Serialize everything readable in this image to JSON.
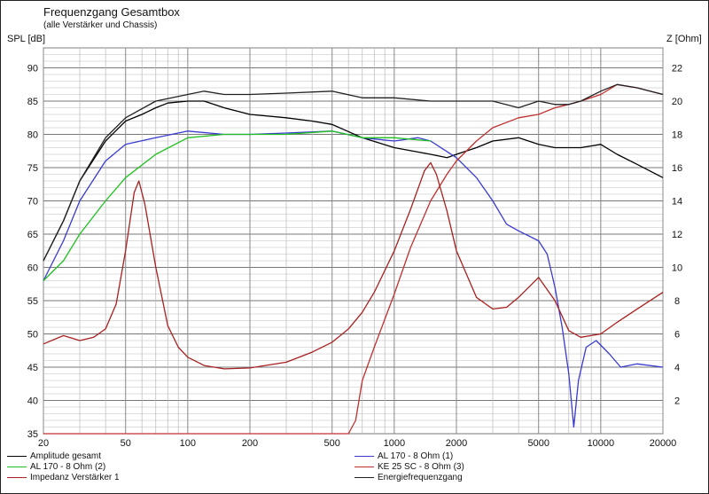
{
  "title": "Frequenzgang Gesamtbox",
  "subtitle": "(alle Verstärker und Chassis)",
  "chart_data": {
    "type": "line",
    "title": "Frequenzgang Gesamtbox",
    "subtitle": "(alle Verstärker und Chassis)",
    "xlabel": "",
    "ylabel": "SPL [dB]",
    "y2label": "Z [Ohm]",
    "xscale": "log",
    "xlim": [
      20,
      20000
    ],
    "ylim": [
      35,
      93
    ],
    "y2lim": [
      0,
      23.2
    ],
    "xticks": [
      20,
      50,
      100,
      200,
      500,
      1000,
      2000,
      5000,
      10000,
      20000
    ],
    "xtick_labels": [
      "20",
      "50",
      "100",
      "200",
      "500",
      "1000",
      "2000",
      "5000",
      "10000",
      "20000"
    ],
    "yticks": [
      35,
      40,
      45,
      50,
      55,
      60,
      65,
      70,
      75,
      80,
      85,
      90
    ],
    "ytick_labels": [
      "35",
      "40",
      "45",
      "50",
      "55",
      "60",
      "65",
      "70",
      "75",
      "80",
      "85",
      "90"
    ],
    "y2ticks": [
      2,
      4,
      6,
      8,
      10,
      12,
      14,
      16,
      18,
      20,
      22
    ],
    "y2tick_labels": [
      "2",
      "4",
      "6",
      "8",
      "10",
      "12",
      "14",
      "16",
      "18",
      "20",
      "22"
    ],
    "grid": true,
    "legend_position": "bottom",
    "series": [
      {
        "name": "Amplitude gesamt",
        "color": "#000000",
        "axis": "left",
        "points": [
          [
            20,
            61
          ],
          [
            25,
            67
          ],
          [
            30,
            73
          ],
          [
            40,
            79
          ],
          [
            50,
            82
          ],
          [
            60,
            83
          ],
          [
            70,
            84
          ],
          [
            80,
            84.7
          ],
          [
            100,
            85
          ],
          [
            120,
            85
          ],
          [
            150,
            84
          ],
          [
            200,
            83
          ],
          [
            300,
            82.5
          ],
          [
            400,
            82
          ],
          [
            500,
            81.5
          ],
          [
            700,
            79.5
          ],
          [
            1000,
            78
          ],
          [
            1500,
            77
          ],
          [
            1800,
            76.5
          ],
          [
            2000,
            77
          ],
          [
            2500,
            78
          ],
          [
            3000,
            79
          ],
          [
            4000,
            79.5
          ],
          [
            5000,
            78.5
          ],
          [
            6000,
            78
          ],
          [
            7000,
            78
          ],
          [
            8000,
            78
          ],
          [
            10000,
            78.5
          ],
          [
            12000,
            77
          ],
          [
            15000,
            75.5
          ],
          [
            20000,
            73.5
          ]
        ]
      },
      {
        "name": "AL 170 - 8 Ohm (1)",
        "color": "#3a3ad0",
        "axis": "left",
        "points": [
          [
            20,
            58
          ],
          [
            25,
            64
          ],
          [
            30,
            70
          ],
          [
            40,
            76
          ],
          [
            50,
            78.5
          ],
          [
            70,
            79.5
          ],
          [
            100,
            80.5
          ],
          [
            150,
            80
          ],
          [
            200,
            80
          ],
          [
            300,
            80.2
          ],
          [
            500,
            80.5
          ],
          [
            700,
            79.5
          ],
          [
            1000,
            79
          ],
          [
            1300,
            79.5
          ],
          [
            1500,
            79
          ],
          [
            2000,
            76.5
          ],
          [
            2500,
            73.5
          ],
          [
            3000,
            70
          ],
          [
            3500,
            66.5
          ],
          [
            4000,
            65.5
          ],
          [
            5000,
            64
          ],
          [
            5500,
            62
          ],
          [
            6000,
            57
          ],
          [
            6500,
            51
          ],
          [
            7000,
            44
          ],
          [
            7400,
            36
          ],
          [
            7800,
            43
          ],
          [
            8500,
            48
          ],
          [
            9500,
            49
          ],
          [
            11000,
            47
          ],
          [
            12500,
            45
          ],
          [
            15000,
            45.5
          ],
          [
            20000,
            45
          ]
        ]
      },
      {
        "name": "AL 170 - 8 Ohm (2)",
        "color": "#20c020",
        "axis": "left",
        "points": [
          [
            20,
            58
          ],
          [
            25,
            61
          ],
          [
            30,
            65
          ],
          [
            40,
            70
          ],
          [
            50,
            73.5
          ],
          [
            70,
            77
          ],
          [
            100,
            79.5
          ],
          [
            150,
            80
          ],
          [
            200,
            80
          ],
          [
            300,
            80
          ],
          [
            500,
            80.5
          ],
          [
            700,
            79.5
          ],
          [
            1000,
            79.5
          ],
          [
            1500,
            79
          ]
        ]
      },
      {
        "name": "KE 25 SC - 8 Ohm   (3)",
        "color": "#c03030",
        "axis": "left",
        "points": [
          [
            20,
            35
          ],
          [
            600,
            35
          ],
          [
            650,
            37
          ],
          [
            700,
            43
          ],
          [
            800,
            48
          ],
          [
            1000,
            56
          ],
          [
            1200,
            63
          ],
          [
            1500,
            70
          ],
          [
            1800,
            74
          ],
          [
            2000,
            76
          ],
          [
            2500,
            79
          ],
          [
            3000,
            81
          ],
          [
            4000,
            82.5
          ],
          [
            5000,
            83
          ],
          [
            6000,
            84
          ],
          [
            7000,
            84.5
          ],
          [
            8000,
            85
          ],
          [
            10000,
            86
          ],
          [
            12000,
            87.5
          ],
          [
            15000,
            87
          ],
          [
            20000,
            86
          ]
        ]
      },
      {
        "name": "Impedanz Verstärker 1",
        "color": "#a82020",
        "axis": "right",
        "points": [
          [
            20,
            5.4
          ],
          [
            25,
            5.9
          ],
          [
            30,
            5.6
          ],
          [
            35,
            5.8
          ],
          [
            40,
            6.3
          ],
          [
            45,
            7.8
          ],
          [
            50,
            11
          ],
          [
            55,
            14.5
          ],
          [
            58,
            15.2
          ],
          [
            62,
            13.8
          ],
          [
            70,
            10
          ],
          [
            80,
            6.5
          ],
          [
            90,
            5.2
          ],
          [
            100,
            4.6
          ],
          [
            120,
            4.1
          ],
          [
            150,
            3.9
          ],
          [
            200,
            3.95
          ],
          [
            300,
            4.3
          ],
          [
            400,
            4.9
          ],
          [
            500,
            5.5
          ],
          [
            600,
            6.3
          ],
          [
            700,
            7.3
          ],
          [
            800,
            8.5
          ],
          [
            1000,
            11
          ],
          [
            1200,
            13.5
          ],
          [
            1400,
            15.8
          ],
          [
            1500,
            16.3
          ],
          [
            1600,
            15.6
          ],
          [
            1800,
            13.4
          ],
          [
            2000,
            11
          ],
          [
            2500,
            8.2
          ],
          [
            3000,
            7.5
          ],
          [
            3500,
            7.6
          ],
          [
            4000,
            8.2
          ],
          [
            5000,
            9.4
          ],
          [
            6000,
            8
          ],
          [
            7000,
            6.2
          ],
          [
            8000,
            5.8
          ],
          [
            10000,
            6
          ],
          [
            12000,
            6.7
          ],
          [
            15000,
            7.5
          ],
          [
            20000,
            8.5
          ]
        ]
      },
      {
        "name": "Energiefrequenzgang",
        "color": "#222222",
        "axis": "left",
        "points": [
          [
            20,
            61
          ],
          [
            25,
            67
          ],
          [
            30,
            73
          ],
          [
            40,
            79.5
          ],
          [
            50,
            82.5
          ],
          [
            70,
            85
          ],
          [
            100,
            86
          ],
          [
            120,
            86.5
          ],
          [
            150,
            86
          ],
          [
            200,
            86
          ],
          [
            300,
            86.2
          ],
          [
            500,
            86.5
          ],
          [
            700,
            85.5
          ],
          [
            1000,
            85.5
          ],
          [
            1500,
            85
          ],
          [
            2000,
            85
          ],
          [
            3000,
            85
          ],
          [
            4000,
            84
          ],
          [
            5000,
            85
          ],
          [
            6000,
            84.5
          ],
          [
            7000,
            84.5
          ],
          [
            8000,
            85
          ],
          [
            10000,
            86.5
          ],
          [
            12000,
            87.5
          ],
          [
            15000,
            87
          ],
          [
            20000,
            86
          ]
        ]
      }
    ]
  }
}
